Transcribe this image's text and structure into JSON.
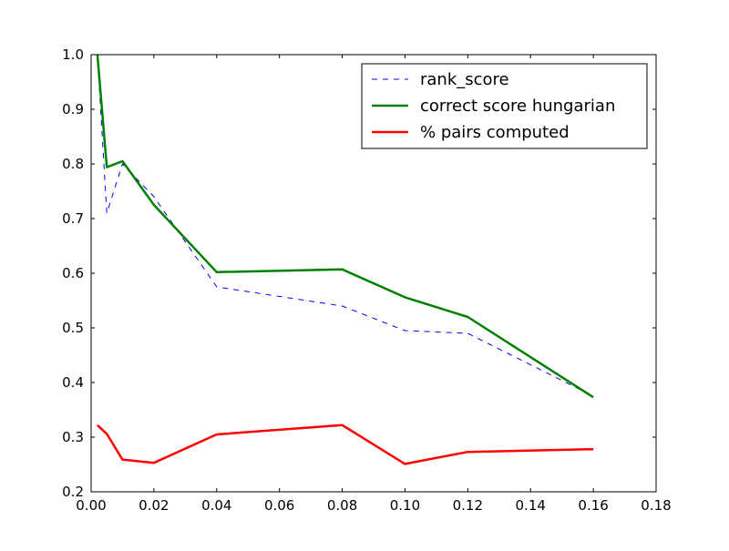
{
  "chart_data": {
    "type": "line",
    "title": "",
    "xlabel": "",
    "ylabel": "",
    "xlim": [
      0.0,
      0.18
    ],
    "ylim": [
      0.2,
      1.0
    ],
    "xticks": [
      0.0,
      0.02,
      0.04,
      0.06,
      0.08,
      0.1,
      0.12,
      0.14,
      0.16,
      0.18
    ],
    "xtick_labels": [
      "0.00",
      "0.02",
      "0.04",
      "0.06",
      "0.08",
      "0.10",
      "0.12",
      "0.14",
      "0.16",
      "0.18"
    ],
    "yticks": [
      0.2,
      0.3,
      0.4,
      0.5,
      0.6,
      0.7,
      0.8,
      0.9,
      1.0
    ],
    "ytick_labels": [
      "0.2",
      "0.3",
      "0.4",
      "0.5",
      "0.6",
      "0.7",
      "0.8",
      "0.9",
      "1.0"
    ],
    "grid": false,
    "legend_position": "top-right",
    "series": [
      {
        "name": "rank_score",
        "color": "#0000ff",
        "style": "dashed",
        "x": [
          0.002,
          0.005,
          0.01,
          0.02,
          0.04,
          0.08,
          0.1,
          0.12,
          0.16
        ],
        "y": [
          1.0,
          0.71,
          0.8,
          0.74,
          0.575,
          0.54,
          0.495,
          0.49,
          0.375
        ]
      },
      {
        "name": "correct score hungarian",
        "color": "#008000",
        "style": "solid",
        "x": [
          0.002,
          0.005,
          0.01,
          0.02,
          0.04,
          0.08,
          0.1,
          0.12,
          0.16
        ],
        "y": [
          1.0,
          0.794,
          0.805,
          0.725,
          0.602,
          0.607,
          0.556,
          0.52,
          0.373
        ]
      },
      {
        "name": "% pairs computed",
        "color": "#ff0000",
        "style": "solid",
        "x": [
          0.002,
          0.005,
          0.01,
          0.02,
          0.04,
          0.08,
          0.1,
          0.12,
          0.16
        ],
        "y": [
          0.322,
          0.306,
          0.259,
          0.253,
          0.305,
          0.322,
          0.251,
          0.273,
          0.278
        ]
      }
    ]
  }
}
